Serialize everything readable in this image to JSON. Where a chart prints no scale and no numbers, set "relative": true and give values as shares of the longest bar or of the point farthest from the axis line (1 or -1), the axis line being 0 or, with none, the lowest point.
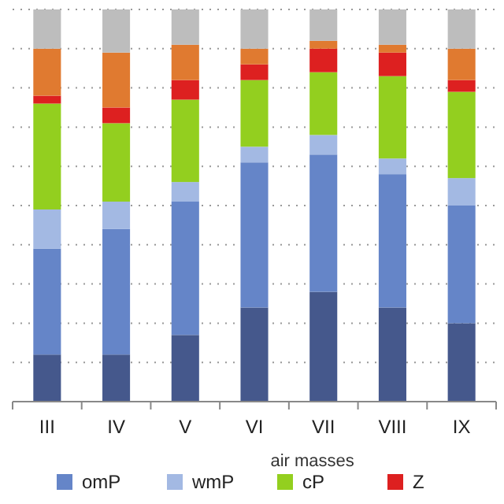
{
  "chart_data": {
    "type": "bar",
    "stacked": true,
    "relative": true,
    "xlabel": "air masses",
    "categories": [
      "III",
      "IV",
      "V",
      "VI",
      "VII",
      "VIII",
      "IX"
    ],
    "grid": "y",
    "legend": "bottom",
    "series": [
      {
        "color": "#45588c",
        "values": [
          0.12,
          0.12,
          0.17,
          0.24,
          0.28,
          0.24,
          0.2
        ]
      },
      {
        "name": "omP",
        "color": "#6585c8",
        "values": [
          0.27,
          0.32,
          0.34,
          0.37,
          0.35,
          0.34,
          0.3
        ]
      },
      {
        "name": "wmP",
        "color": "#a3b9e3",
        "values": [
          0.1,
          0.07,
          0.05,
          0.04,
          0.05,
          0.04,
          0.07
        ]
      },
      {
        "name": "cP",
        "color": "#93cf1f",
        "values": [
          0.27,
          0.2,
          0.21,
          0.17,
          0.16,
          0.21,
          0.22
        ]
      },
      {
        "name": "Z",
        "color": "#dd2020",
        "values": [
          0.02,
          0.04,
          0.05,
          0.04,
          0.06,
          0.06,
          0.03
        ]
      },
      {
        "color": "#e07a30",
        "values": [
          0.12,
          0.14,
          0.09,
          0.04,
          0.02,
          0.02,
          0.08
        ]
      },
      {
        "color": "#bdbdbd",
        "values": [
          0.1,
          0.11,
          0.09,
          0.1,
          0.08,
          0.09,
          0.1
        ]
      }
    ]
  }
}
